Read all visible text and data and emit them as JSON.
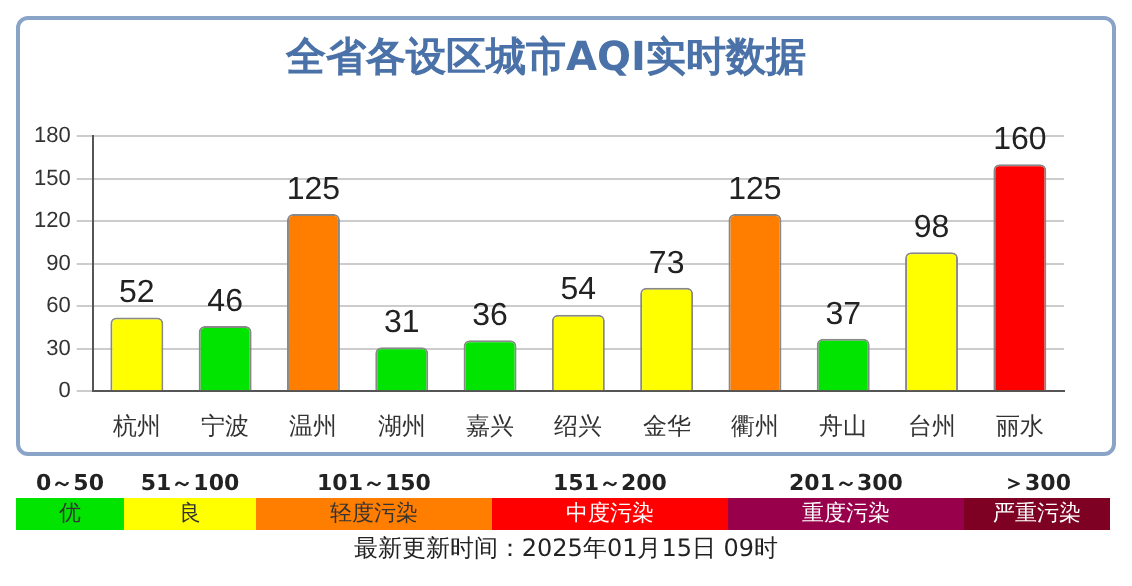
{
  "chart_data": {
    "type": "bar",
    "title": "全省各设区城市AQI实时数据",
    "categories": [
      "杭州",
      "宁波",
      "温州",
      "湖州",
      "嘉兴",
      "绍兴",
      "金华",
      "衢州",
      "舟山",
      "台州",
      "丽水"
    ],
    "values": [
      52,
      46,
      125,
      31,
      36,
      54,
      73,
      125,
      37,
      98,
      160
    ],
    "colors": [
      "#ffff00",
      "#00e400",
      "#ff7e00",
      "#00e400",
      "#00e400",
      "#ffff00",
      "#ffff00",
      "#ff7e00",
      "#00e400",
      "#ffff00",
      "#ff0000"
    ],
    "ylim": [
      0,
      180
    ],
    "yticks": [
      0,
      30,
      60,
      90,
      120,
      150,
      180
    ],
    "grid": "y",
    "data_labels": true,
    "legend": false,
    "annotations": [
      "0～50",
      "51～100",
      "101～150",
      "151～200",
      "201～300",
      "＞300",
      "优",
      "良",
      "轻度污染",
      "中度污染",
      "重度污染",
      "严重污染",
      "最新更新时间：2025年01月15日 09时"
    ]
  }
}
